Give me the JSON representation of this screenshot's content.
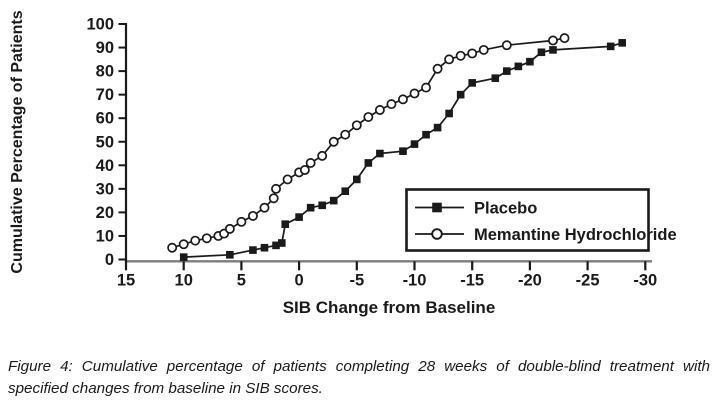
{
  "figure": {
    "caption": "Figure 4: Cumulative percentage of patients completing 28 weeks of double-blind treatment with specified changes from baseline in SIB scores."
  },
  "chart_data": {
    "type": "line",
    "title": "",
    "xlabel": "SIB Change from Baseline",
    "ylabel": "Cumulative Percentage of Patients",
    "x_axis": {
      "min": 15,
      "max": -30,
      "reversed": true,
      "ticks": [
        15,
        10,
        5,
        0,
        -5,
        -10,
        -15,
        -20,
        -25,
        -30
      ]
    },
    "y_axis": {
      "min": 0,
      "max": 100,
      "ticks": [
        0,
        10,
        20,
        30,
        40,
        50,
        60,
        70,
        80,
        90,
        100
      ]
    },
    "grid": false,
    "legend": {
      "position": "inside-right",
      "border": true
    },
    "colors": {
      "series": "#1a1a1a",
      "x_axis_line": "#7d7d7d",
      "axis": "#1a1a1a",
      "background": "#ffffff"
    },
    "series": [
      {
        "name": "Placebo",
        "marker": "filled-square",
        "points": [
          [
            10,
            1
          ],
          [
            6,
            2
          ],
          [
            4,
            4
          ],
          [
            3,
            5
          ],
          [
            2,
            6
          ],
          [
            1.5,
            7
          ],
          [
            1.2,
            15
          ],
          [
            0,
            18
          ],
          [
            -1,
            22
          ],
          [
            -2,
            23
          ],
          [
            -3,
            25
          ],
          [
            -4,
            29
          ],
          [
            -5,
            34
          ],
          [
            -6,
            41
          ],
          [
            -7,
            45
          ],
          [
            -9,
            46
          ],
          [
            -10,
            49
          ],
          [
            -11,
            53
          ],
          [
            -12,
            56
          ],
          [
            -13,
            62
          ],
          [
            -14,
            70
          ],
          [
            -15,
            75
          ],
          [
            -17,
            77
          ],
          [
            -18,
            80
          ],
          [
            -19,
            82
          ],
          [
            -20,
            84
          ],
          [
            -21,
            88
          ],
          [
            -22,
            89
          ],
          [
            -27,
            90.5
          ],
          [
            -28,
            92
          ]
        ]
      },
      {
        "name": "Memantine Hydrochloride",
        "marker": "open-circle",
        "points": [
          [
            11,
            5
          ],
          [
            10,
            6.5
          ],
          [
            9,
            8
          ],
          [
            8,
            9
          ],
          [
            7,
            10
          ],
          [
            6.5,
            11
          ],
          [
            6,
            13
          ],
          [
            5,
            16
          ],
          [
            4,
            18.5
          ],
          [
            3,
            22
          ],
          [
            2.2,
            26
          ],
          [
            2,
            30
          ],
          [
            1,
            34
          ],
          [
            0,
            37
          ],
          [
            -0.5,
            38
          ],
          [
            -1,
            41
          ],
          [
            -2,
            44
          ],
          [
            -3,
            50
          ],
          [
            -4,
            53
          ],
          [
            -5,
            57
          ],
          [
            -6,
            60.5
          ],
          [
            -7,
            63.5
          ],
          [
            -8,
            66
          ],
          [
            -9,
            68
          ],
          [
            -10,
            70.5
          ],
          [
            -11,
            73
          ],
          [
            -12,
            81
          ],
          [
            -13,
            85
          ],
          [
            -14,
            86.5
          ],
          [
            -15,
            87.5
          ],
          [
            -16,
            89
          ],
          [
            -18,
            91
          ],
          [
            -22,
            93
          ],
          [
            -23,
            94
          ]
        ]
      }
    ]
  }
}
